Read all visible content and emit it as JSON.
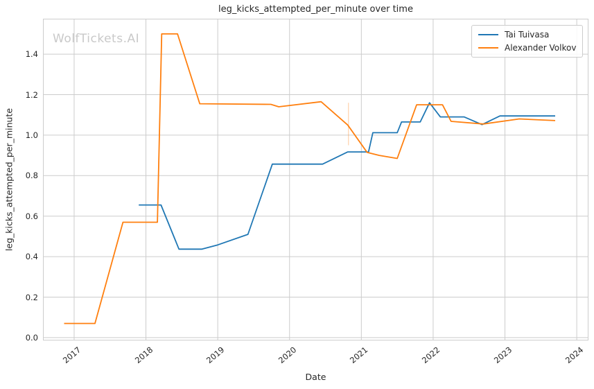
{
  "title": "leg_kicks_attempted_per_minute over time",
  "watermark": "WolfTickets.AI",
  "axes": {
    "xlabel": "Date",
    "ylabel": "leg_kicks_attempted_per_minute",
    "x_tick_labels": [
      "2017",
      "2018",
      "2019",
      "2020",
      "2021",
      "2022",
      "2023",
      "2024"
    ],
    "y_tick_labels": [
      "0.0",
      "0.2",
      "0.4",
      "0.6",
      "0.8",
      "1.0",
      "1.2",
      "1.4"
    ]
  },
  "legend": {
    "position": "upper right",
    "items": [
      {
        "label": "Tai Tuivasa",
        "color": "#1f77b4"
      },
      {
        "label": "Alexander Volkov",
        "color": "#ff7f0e"
      }
    ]
  },
  "colors": {
    "grid": "#cccccc",
    "spine": "#cccccc",
    "text": "#262626",
    "background": "#ffffff",
    "series_blue": "#1f77b4",
    "series_orange": "#ff7f0e"
  },
  "chart_data": {
    "type": "line",
    "title": "leg_kicks_attempted_per_minute over time",
    "xlabel": "Date",
    "ylabel": "leg_kicks_attempted_per_minute",
    "xlim": [
      2016.566,
      2024.163
    ],
    "ylim": [
      -0.014,
      1.575
    ],
    "x_ticks": [
      2017,
      2018,
      2019,
      2020,
      2021,
      2022,
      2023,
      2024
    ],
    "y_ticks": [
      0.0,
      0.2,
      0.4,
      0.6,
      0.8,
      1.0,
      1.2,
      1.4
    ],
    "grid": true,
    "series": [
      {
        "name": "Tai Tuivasa",
        "color": "#1f77b4",
        "points": [
          [
            2017.9,
            0.655
          ],
          [
            2018.21,
            0.655
          ],
          [
            2018.46,
            0.437
          ],
          [
            2018.78,
            0.437
          ],
          [
            2019.0,
            0.458
          ],
          [
            2019.42,
            0.51
          ],
          [
            2019.76,
            0.857
          ],
          [
            2020.46,
            0.857
          ],
          [
            2020.81,
            0.917
          ],
          [
            2021.1,
            0.917
          ],
          [
            2021.16,
            1.012
          ],
          [
            2021.5,
            1.012
          ],
          [
            2021.56,
            1.065
          ],
          [
            2021.82,
            1.065
          ],
          [
            2021.95,
            1.16
          ],
          [
            2022.1,
            1.09
          ],
          [
            2022.43,
            1.09
          ],
          [
            2022.68,
            1.052
          ],
          [
            2022.93,
            1.095
          ],
          [
            2023.7,
            1.095
          ]
        ]
      },
      {
        "name": "Alexander Volkov",
        "color": "#ff7f0e",
        "points": [
          [
            2016.86,
            0.07
          ],
          [
            2017.29,
            0.07
          ],
          [
            2017.68,
            0.57
          ],
          [
            2018.16,
            0.57
          ],
          [
            2018.22,
            1.5
          ],
          [
            2018.44,
            1.5
          ],
          [
            2018.75,
            1.155
          ],
          [
            2019.74,
            1.152
          ],
          [
            2019.85,
            1.14
          ],
          [
            2020.44,
            1.165
          ],
          [
            2020.81,
            1.05
          ],
          [
            2021.08,
            0.915
          ],
          [
            2021.25,
            0.9
          ],
          [
            2021.5,
            0.885
          ],
          [
            2021.77,
            1.15
          ],
          [
            2022.13,
            1.15
          ],
          [
            2022.25,
            1.068
          ],
          [
            2022.7,
            1.055
          ],
          [
            2023.2,
            1.08
          ],
          [
            2023.7,
            1.072
          ]
        ]
      }
    ],
    "annotations": [
      {
        "type": "vline",
        "x": 2020.82,
        "y0": 0.95,
        "y1": 1.16,
        "color": "#ff7f0e",
        "opacity": 0.3
      }
    ]
  }
}
